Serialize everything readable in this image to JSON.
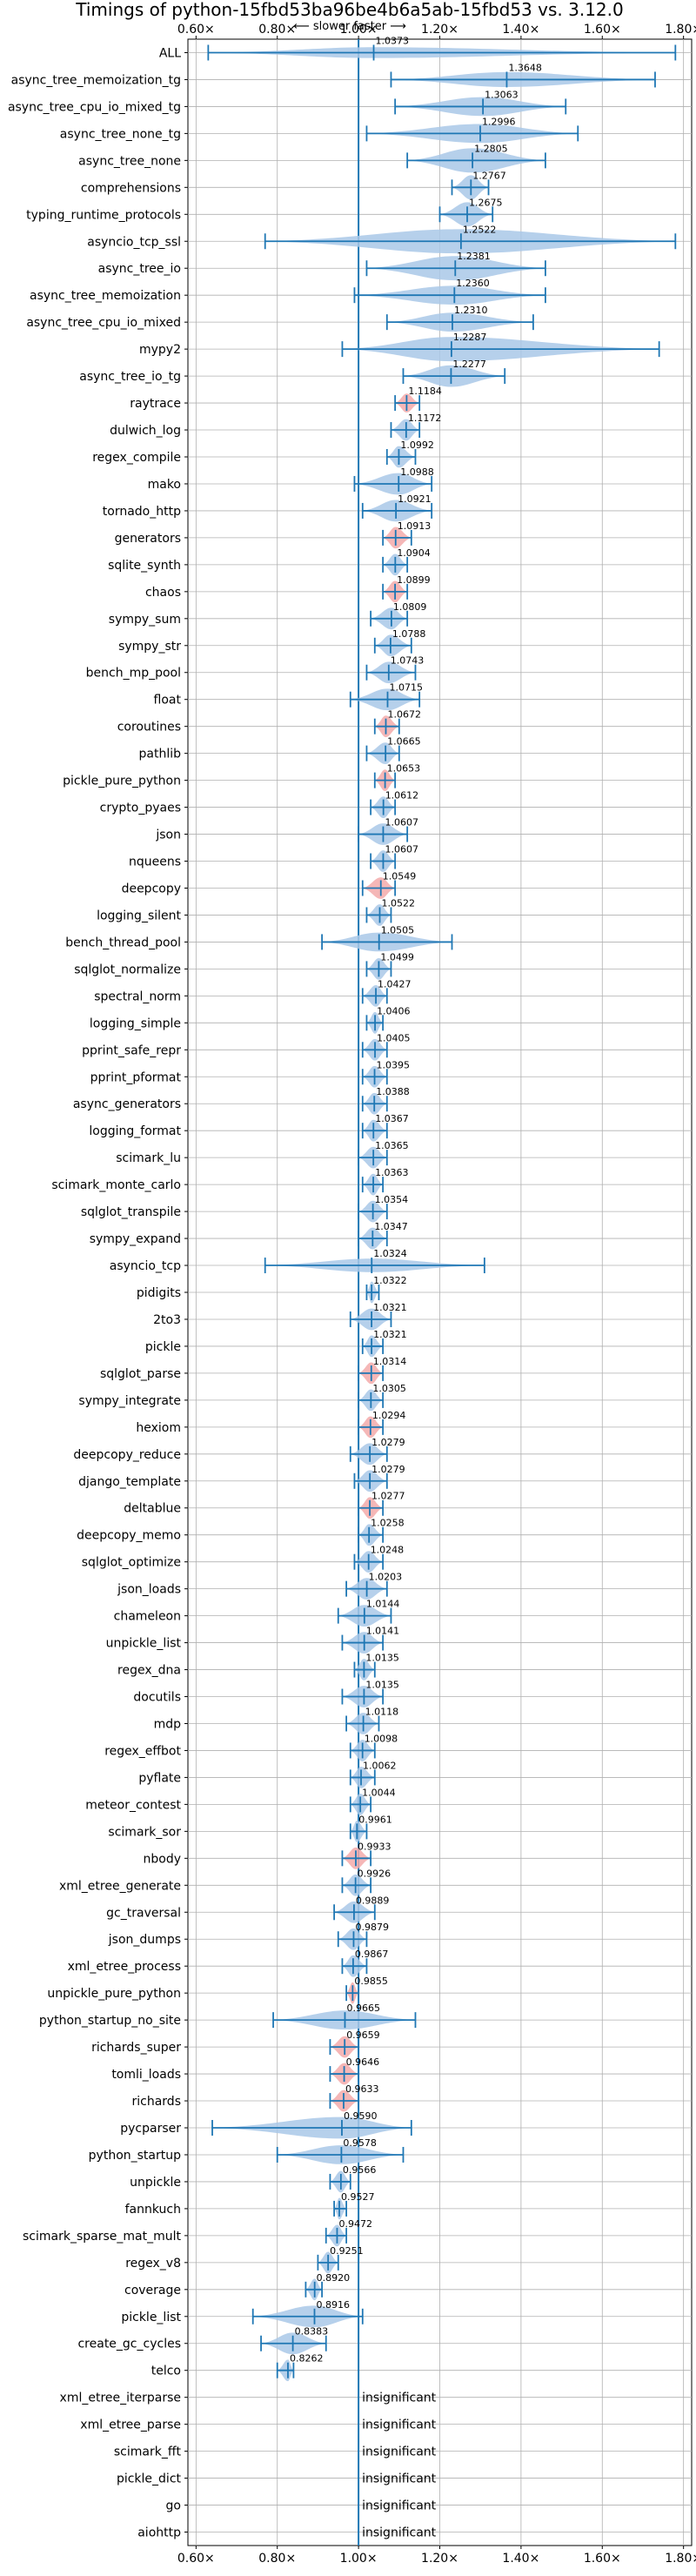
{
  "chart_data": {
    "type": "violin",
    "title": "Timings of python-15fbd53ba96be4b6a5ab-15fbd53 vs. 3.12.0",
    "subtitle": "⟵ slower     faster ⟶",
    "xlim": [
      0.58,
      1.82
    ],
    "xticks": [
      0.6,
      0.8,
      1.0,
      1.2,
      1.4,
      1.6,
      1.8
    ],
    "xtick_labels": [
      "0.60×",
      "0.80×",
      "1.00×",
      "1.20×",
      "1.40×",
      "1.60×",
      "1.80×"
    ],
    "grid": true,
    "colors": {
      "violin": "#a9c8e8",
      "significant": "#f3aaaa",
      "line": "#1f77b4",
      "ref": "#1f77b4"
    },
    "benchmarks": [
      {
        "name": "ALL",
        "value": 1.0373,
        "min": 0.63,
        "max": 1.78,
        "width": 0.4,
        "sig": false
      },
      {
        "name": "async_tree_memoization_tg",
        "value": 1.3648,
        "min": 1.08,
        "max": 1.73,
        "width": 0.55,
        "sig": false
      },
      {
        "name": "async_tree_cpu_io_mixed_tg",
        "value": 1.3063,
        "min": 1.09,
        "max": 1.51,
        "width": 0.7,
        "sig": false
      },
      {
        "name": "async_tree_none_tg",
        "value": 1.2996,
        "min": 1.02,
        "max": 1.54,
        "width": 0.7,
        "sig": false
      },
      {
        "name": "async_tree_none",
        "value": 1.2805,
        "min": 1.12,
        "max": 1.46,
        "width": 0.9,
        "sig": false
      },
      {
        "name": "comprehensions",
        "value": 1.2767,
        "min": 1.23,
        "max": 1.32,
        "width": 0.9,
        "sig": false
      },
      {
        "name": "typing_runtime_protocols",
        "value": 1.2675,
        "min": 1.2,
        "max": 1.33,
        "width": 0.9,
        "sig": false
      },
      {
        "name": "asyncio_tcp_ssl",
        "value": 1.2522,
        "min": 0.77,
        "max": 1.78,
        "width": 0.9,
        "sig": false
      },
      {
        "name": "async_tree_io",
        "value": 1.2381,
        "min": 1.02,
        "max": 1.46,
        "width": 0.9,
        "sig": false
      },
      {
        "name": "async_tree_memoization",
        "value": 1.236,
        "min": 0.99,
        "max": 1.46,
        "width": 0.7,
        "sig": false
      },
      {
        "name": "async_tree_cpu_io_mixed",
        "value": 1.231,
        "min": 1.07,
        "max": 1.43,
        "width": 0.7,
        "sig": false
      },
      {
        "name": "mypy2",
        "value": 1.2287,
        "min": 0.96,
        "max": 1.74,
        "width": 0.9,
        "sig": false
      },
      {
        "name": "async_tree_io_tg",
        "value": 1.2277,
        "min": 1.11,
        "max": 1.36,
        "width": 0.8,
        "sig": false
      },
      {
        "name": "raytrace",
        "value": 1.1184,
        "min": 1.09,
        "max": 1.15,
        "width": 0.7,
        "sig": true
      },
      {
        "name": "dulwich_log",
        "value": 1.1172,
        "min": 1.08,
        "max": 1.15,
        "width": 0.8,
        "sig": false
      },
      {
        "name": "regex_compile",
        "value": 1.0992,
        "min": 1.07,
        "max": 1.14,
        "width": 0.8,
        "sig": false
      },
      {
        "name": "mako",
        "value": 1.0988,
        "min": 0.99,
        "max": 1.18,
        "width": 0.8,
        "sig": false
      },
      {
        "name": "tornado_http",
        "value": 1.0921,
        "min": 1.01,
        "max": 1.18,
        "width": 0.8,
        "sig": false
      },
      {
        "name": "generators",
        "value": 1.0913,
        "min": 1.06,
        "max": 1.13,
        "width": 0.8,
        "sig": true
      },
      {
        "name": "sqlite_synth",
        "value": 1.0904,
        "min": 1.06,
        "max": 1.12,
        "width": 0.8,
        "sig": false
      },
      {
        "name": "chaos",
        "value": 1.0899,
        "min": 1.06,
        "max": 1.12,
        "width": 0.8,
        "sig": true
      },
      {
        "name": "sympy_sum",
        "value": 1.0809,
        "min": 1.03,
        "max": 1.12,
        "width": 0.8,
        "sig": false
      },
      {
        "name": "sympy_str",
        "value": 1.0788,
        "min": 1.04,
        "max": 1.13,
        "width": 0.8,
        "sig": false
      },
      {
        "name": "bench_mp_pool",
        "value": 1.0743,
        "min": 1.02,
        "max": 1.14,
        "width": 0.8,
        "sig": false
      },
      {
        "name": "float",
        "value": 1.0715,
        "min": 0.98,
        "max": 1.15,
        "width": 0.8,
        "sig": false
      },
      {
        "name": "coroutines",
        "value": 1.0672,
        "min": 1.04,
        "max": 1.1,
        "width": 0.8,
        "sig": true
      },
      {
        "name": "pathlib",
        "value": 1.0665,
        "min": 1.02,
        "max": 1.1,
        "width": 0.8,
        "sig": false
      },
      {
        "name": "pickle_pure_python",
        "value": 1.0653,
        "min": 1.04,
        "max": 1.09,
        "width": 0.8,
        "sig": true
      },
      {
        "name": "crypto_pyaes",
        "value": 1.0612,
        "min": 1.03,
        "max": 1.09,
        "width": 0.8,
        "sig": false
      },
      {
        "name": "json",
        "value": 1.0607,
        "min": 1.0,
        "max": 1.12,
        "width": 0.8,
        "sig": false
      },
      {
        "name": "nqueens",
        "value": 1.0607,
        "min": 1.03,
        "max": 1.09,
        "width": 0.8,
        "sig": false
      },
      {
        "name": "deepcopy",
        "value": 1.0549,
        "min": 1.01,
        "max": 1.09,
        "width": 0.8,
        "sig": true
      },
      {
        "name": "logging_silent",
        "value": 1.0522,
        "min": 1.02,
        "max": 1.08,
        "width": 0.8,
        "sig": false
      },
      {
        "name": "bench_thread_pool",
        "value": 1.0505,
        "min": 0.91,
        "max": 1.23,
        "width": 0.7,
        "sig": false
      },
      {
        "name": "sqlglot_normalize",
        "value": 1.0499,
        "min": 1.02,
        "max": 1.08,
        "width": 0.8,
        "sig": false
      },
      {
        "name": "spectral_norm",
        "value": 1.0427,
        "min": 1.01,
        "max": 1.07,
        "width": 0.8,
        "sig": false
      },
      {
        "name": "logging_simple",
        "value": 1.0406,
        "min": 1.02,
        "max": 1.06,
        "width": 0.8,
        "sig": false
      },
      {
        "name": "pprint_safe_repr",
        "value": 1.0405,
        "min": 1.01,
        "max": 1.07,
        "width": 0.8,
        "sig": false
      },
      {
        "name": "pprint_pformat",
        "value": 1.0395,
        "min": 1.01,
        "max": 1.07,
        "width": 0.8,
        "sig": false
      },
      {
        "name": "async_generators",
        "value": 1.0388,
        "min": 1.01,
        "max": 1.07,
        "width": 0.8,
        "sig": false
      },
      {
        "name": "logging_format",
        "value": 1.0367,
        "min": 1.01,
        "max": 1.07,
        "width": 0.8,
        "sig": false
      },
      {
        "name": "scimark_lu",
        "value": 1.0365,
        "min": 1.0,
        "max": 1.07,
        "width": 0.8,
        "sig": false
      },
      {
        "name": "scimark_monte_carlo",
        "value": 1.0363,
        "min": 1.01,
        "max": 1.06,
        "width": 0.8,
        "sig": false
      },
      {
        "name": "sqlglot_transpile",
        "value": 1.0354,
        "min": 1.0,
        "max": 1.07,
        "width": 0.8,
        "sig": false
      },
      {
        "name": "sympy_expand",
        "value": 1.0347,
        "min": 1.0,
        "max": 1.07,
        "width": 0.8,
        "sig": false
      },
      {
        "name": "asyncio_tcp",
        "value": 1.0324,
        "min": 0.77,
        "max": 1.31,
        "width": 0.5,
        "sig": false
      },
      {
        "name": "pidigits",
        "value": 1.0322,
        "min": 1.02,
        "max": 1.05,
        "width": 0.8,
        "sig": false
      },
      {
        "name": "2to3",
        "value": 1.0321,
        "min": 0.98,
        "max": 1.08,
        "width": 0.8,
        "sig": false
      },
      {
        "name": "pickle",
        "value": 1.0321,
        "min": 1.01,
        "max": 1.06,
        "width": 0.8,
        "sig": false
      },
      {
        "name": "sqlglot_parse",
        "value": 1.0314,
        "min": 1.0,
        "max": 1.06,
        "width": 0.8,
        "sig": true
      },
      {
        "name": "sympy_integrate",
        "value": 1.0305,
        "min": 1.0,
        "max": 1.06,
        "width": 0.8,
        "sig": false
      },
      {
        "name": "hexiom",
        "value": 1.0294,
        "min": 1.0,
        "max": 1.06,
        "width": 0.8,
        "sig": true
      },
      {
        "name": "deepcopy_reduce",
        "value": 1.0279,
        "min": 0.98,
        "max": 1.07,
        "width": 0.8,
        "sig": false
      },
      {
        "name": "django_template",
        "value": 1.0279,
        "min": 0.99,
        "max": 1.07,
        "width": 0.8,
        "sig": false
      },
      {
        "name": "deltablue",
        "value": 1.0277,
        "min": 1.0,
        "max": 1.06,
        "width": 0.8,
        "sig": true
      },
      {
        "name": "deepcopy_memo",
        "value": 1.0258,
        "min": 1.0,
        "max": 1.06,
        "width": 0.8,
        "sig": false
      },
      {
        "name": "sqlglot_optimize",
        "value": 1.0248,
        "min": 0.99,
        "max": 1.06,
        "width": 0.8,
        "sig": false
      },
      {
        "name": "json_loads",
        "value": 1.0203,
        "min": 0.97,
        "max": 1.07,
        "width": 0.8,
        "sig": false
      },
      {
        "name": "chameleon",
        "value": 1.0144,
        "min": 0.95,
        "max": 1.08,
        "width": 0.8,
        "sig": false
      },
      {
        "name": "unpickle_list",
        "value": 1.0141,
        "min": 0.96,
        "max": 1.06,
        "width": 0.8,
        "sig": false
      },
      {
        "name": "regex_dna",
        "value": 1.0135,
        "min": 0.99,
        "max": 1.04,
        "width": 0.8,
        "sig": false
      },
      {
        "name": "docutils",
        "value": 1.0135,
        "min": 0.96,
        "max": 1.06,
        "width": 0.8,
        "sig": false
      },
      {
        "name": "mdp",
        "value": 1.0118,
        "min": 0.97,
        "max": 1.05,
        "width": 0.8,
        "sig": false
      },
      {
        "name": "regex_effbot",
        "value": 1.0098,
        "min": 0.98,
        "max": 1.04,
        "width": 0.8,
        "sig": false
      },
      {
        "name": "pyflate",
        "value": 1.0062,
        "min": 0.98,
        "max": 1.04,
        "width": 0.8,
        "sig": false
      },
      {
        "name": "meteor_contest",
        "value": 1.0044,
        "min": 0.98,
        "max": 1.03,
        "width": 0.8,
        "sig": false
      },
      {
        "name": "scimark_sor",
        "value": 0.9961,
        "min": 0.98,
        "max": 1.02,
        "width": 0.8,
        "sig": false
      },
      {
        "name": "nbody",
        "value": 0.9933,
        "min": 0.96,
        "max": 1.03,
        "width": 0.8,
        "sig": true
      },
      {
        "name": "xml_etree_generate",
        "value": 0.9926,
        "min": 0.96,
        "max": 1.03,
        "width": 0.8,
        "sig": false
      },
      {
        "name": "gc_traversal",
        "value": 0.9889,
        "min": 0.94,
        "max": 1.04,
        "width": 0.8,
        "sig": false
      },
      {
        "name": "json_dumps",
        "value": 0.9879,
        "min": 0.95,
        "max": 1.02,
        "width": 0.8,
        "sig": false
      },
      {
        "name": "xml_etree_process",
        "value": 0.9867,
        "min": 0.96,
        "max": 1.02,
        "width": 0.8,
        "sig": false
      },
      {
        "name": "unpickle_pure_python",
        "value": 0.9855,
        "min": 0.97,
        "max": 1.0,
        "width": 0.8,
        "sig": true
      },
      {
        "name": "python_startup_no_site",
        "value": 0.9665,
        "min": 0.79,
        "max": 1.14,
        "width": 0.7,
        "sig": false
      },
      {
        "name": "richards_super",
        "value": 0.9659,
        "min": 0.93,
        "max": 1.0,
        "width": 0.8,
        "sig": true
      },
      {
        "name": "tomli_loads",
        "value": 0.9646,
        "min": 0.93,
        "max": 1.0,
        "width": 0.8,
        "sig": true
      },
      {
        "name": "richards",
        "value": 0.9633,
        "min": 0.93,
        "max": 1.0,
        "width": 0.8,
        "sig": true
      },
      {
        "name": "pycparser",
        "value": 0.959,
        "min": 0.64,
        "max": 1.13,
        "width": 0.8,
        "sig": false
      },
      {
        "name": "python_startup",
        "value": 0.9578,
        "min": 0.8,
        "max": 1.11,
        "width": 0.7,
        "sig": false
      },
      {
        "name": "unpickle",
        "value": 0.9566,
        "min": 0.93,
        "max": 0.98,
        "width": 0.8,
        "sig": false
      },
      {
        "name": "fannkuch",
        "value": 0.9527,
        "min": 0.94,
        "max": 0.97,
        "width": 0.8,
        "sig": false
      },
      {
        "name": "scimark_sparse_mat_mult",
        "value": 0.9472,
        "min": 0.92,
        "max": 0.97,
        "width": 0.8,
        "sig": false
      },
      {
        "name": "regex_v8",
        "value": 0.9251,
        "min": 0.9,
        "max": 0.95,
        "width": 0.8,
        "sig": false
      },
      {
        "name": "coverage",
        "value": 0.892,
        "min": 0.87,
        "max": 0.91,
        "width": 0.8,
        "sig": false
      },
      {
        "name": "pickle_list",
        "value": 0.8916,
        "min": 0.74,
        "max": 1.01,
        "width": 0.8,
        "sig": false
      },
      {
        "name": "create_gc_cycles",
        "value": 0.8383,
        "min": 0.76,
        "max": 0.92,
        "width": 0.8,
        "sig": false
      },
      {
        "name": "telco",
        "value": 0.8262,
        "min": 0.8,
        "max": 0.84,
        "width": 0.8,
        "sig": false
      },
      {
        "name": "xml_etree_iterparse",
        "insignificant": true
      },
      {
        "name": "xml_etree_parse",
        "insignificant": true
      },
      {
        "name": "scimark_fft",
        "insignificant": true
      },
      {
        "name": "pickle_dict",
        "insignificant": true
      },
      {
        "name": "go",
        "insignificant": true
      },
      {
        "name": "aiohttp",
        "insignificant": true
      }
    ],
    "insignificant_label": "insignificant"
  }
}
